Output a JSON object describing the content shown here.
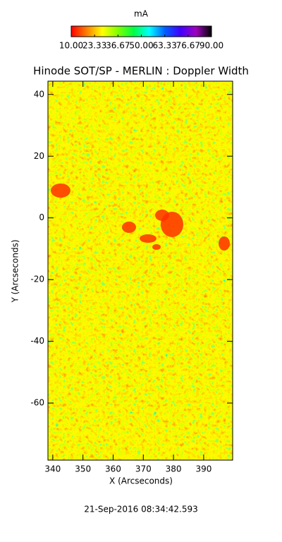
{
  "chart_data": {
    "type": "heatmap",
    "title": "Hinode SOT/SP - MERLIN : Doppler Width",
    "xlabel": "X (Arcseconds)",
    "ylabel": "Y (Arcseconds)",
    "xlim": [
      338.4,
      399.6
    ],
    "xticks": [
      340,
      350,
      360,
      370,
      380,
      390
    ],
    "ylim": [
      -78.5,
      44.3
    ],
    "yticks": [
      -60,
      -40,
      -20,
      0,
      20,
      40
    ],
    "colorbar": {
      "label": "mA",
      "lim": [
        10,
        90
      ],
      "ticks": [
        {
          "value": 10,
          "label": "10.00"
        },
        {
          "value": 23.33,
          "label": "23.33"
        },
        {
          "value": 36.67,
          "label": "36.67"
        },
        {
          "value": 50,
          "label": "50.00"
        },
        {
          "value": 63.33,
          "label": "63.33"
        },
        {
          "value": 76.67,
          "label": "76.67"
        },
        {
          "value": 90,
          "label": "90.00"
        }
      ],
      "colors": [
        "#ff0000",
        "#ff8000",
        "#ffff00",
        "#80ff00",
        "#00ff40",
        "#00ffff",
        "#0060ff",
        "#4000ff",
        "#a000c0",
        "#000000"
      ]
    },
    "date": "21-Sep-2016 08:34:42.593"
  }
}
